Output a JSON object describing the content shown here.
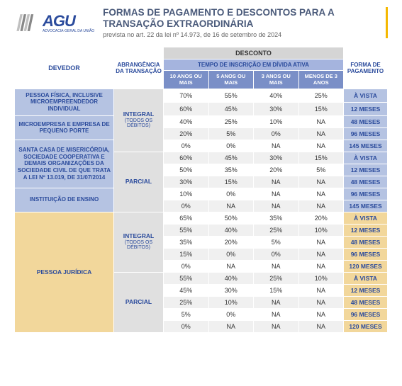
{
  "header": {
    "brand": "AGU",
    "brand_sub": "ADVOCACIA-GERAL DA UNIÃO",
    "title": "FORMAS DE PAGAMENTO E DESCONTOS PARA A TRANSAÇÃO EXTRAORDINÁRIA",
    "subtitle": "prevista no art. 22 da lei nº 14.973, de 16 de setembro de 2024"
  },
  "table_headers": {
    "devedor": "DEVEDOR",
    "abrangencia": "ABRANGÊNCIA DA TRANSAÇÃO",
    "desconto": "DESCONTO",
    "tempo_inscricao": "TEMPO DE INSCRIÇÃO EM DÍVIDA ATIVA",
    "forma_pagamento": "FORMA DE PAGAMENTO",
    "cols": [
      "10 ANOS OU MAIS",
      "5 ANOS OU MAIS",
      "3 ANOS OU MAIS",
      "MENOS DE 3 ANOS"
    ]
  },
  "devedores_group1": [
    "PESSOA FÍSICA, INCLUSIVE MICROEMPREENDEDOR INDIVIDUAL",
    "MICROEMPRESA E EMPRESA DE PEQUENO PORTE",
    "SANTA CASA DE MISERICÓRDIA, SOCIEDADE COOPERATIVA E DEMAIS ORGANIZAÇÕES DA SOCIEDADE CIVIL DE QUE TRATA A LEI Nº 13.019, DE 31/07/2014",
    "INSTITUIÇÃO DE ENSINO"
  ],
  "devedor_group2": "PESSOA JURÍDICA",
  "abrangencia_labels": {
    "integral": "INTEGRAL",
    "integral_sub": "(TODOS OS DÉBITOS)",
    "parcial": "PARCIAL"
  },
  "group1": {
    "integral": [
      {
        "v": [
          "70%",
          "55%",
          "40%",
          "25%"
        ],
        "forma": "À VISTA"
      },
      {
        "v": [
          "60%",
          "45%",
          "30%",
          "15%"
        ],
        "forma": "12 MESES"
      },
      {
        "v": [
          "40%",
          "25%",
          "10%",
          "NA"
        ],
        "forma": "48 MESES"
      },
      {
        "v": [
          "20%",
          "5%",
          "0%",
          "NA"
        ],
        "forma": "96 MESES"
      },
      {
        "v": [
          "0%",
          "0%",
          "NA",
          "NA"
        ],
        "forma": "145 MESES"
      }
    ],
    "parcial": [
      {
        "v": [
          "60%",
          "45%",
          "30%",
          "15%"
        ],
        "forma": "À VISTA"
      },
      {
        "v": [
          "50%",
          "35%",
          "20%",
          "5%"
        ],
        "forma": "12 MESES"
      },
      {
        "v": [
          "30%",
          "15%",
          "NA",
          "NA"
        ],
        "forma": "48 MESES"
      },
      {
        "v": [
          "10%",
          "0%",
          "NA",
          "NA"
        ],
        "forma": "96 MESES"
      },
      {
        "v": [
          "0%",
          "NA",
          "NA",
          "NA"
        ],
        "forma": "145 MESES"
      }
    ]
  },
  "group2": {
    "integral": [
      {
        "v": [
          "65%",
          "50%",
          "35%",
          "20%"
        ],
        "forma": "À VISTA"
      },
      {
        "v": [
          "55%",
          "40%",
          "25%",
          "10%"
        ],
        "forma": "12 MESES"
      },
      {
        "v": [
          "35%",
          "20%",
          "5%",
          "NA"
        ],
        "forma": "48 MESES"
      },
      {
        "v": [
          "15%",
          "0%",
          "0%",
          "NA"
        ],
        "forma": "96 MESES"
      },
      {
        "v": [
          "0%",
          "NA",
          "NA",
          "NA"
        ],
        "forma": "120 MESES"
      }
    ],
    "parcial": [
      {
        "v": [
          "55%",
          "40%",
          "25%",
          "10%"
        ],
        "forma": "À VISTA"
      },
      {
        "v": [
          "45%",
          "30%",
          "15%",
          "NA"
        ],
        "forma": "12 MESES"
      },
      {
        "v": [
          "25%",
          "10%",
          "NA",
          "NA"
        ],
        "forma": "48 MESES"
      },
      {
        "v": [
          "5%",
          "0%",
          "NA",
          "NA"
        ],
        "forma": "96 MESES"
      },
      {
        "v": [
          "0%",
          "NA",
          "NA",
          "NA"
        ],
        "forma": "120 MESES"
      }
    ]
  },
  "colors": {
    "blue_cell": "#b5c3e2",
    "tan_cell": "#f2d79b",
    "dark_blue": "#2b4b9c",
    "header_grey": "#d5d5d5",
    "col_header": "#7a8fc7",
    "accent": "#f5b800"
  }
}
